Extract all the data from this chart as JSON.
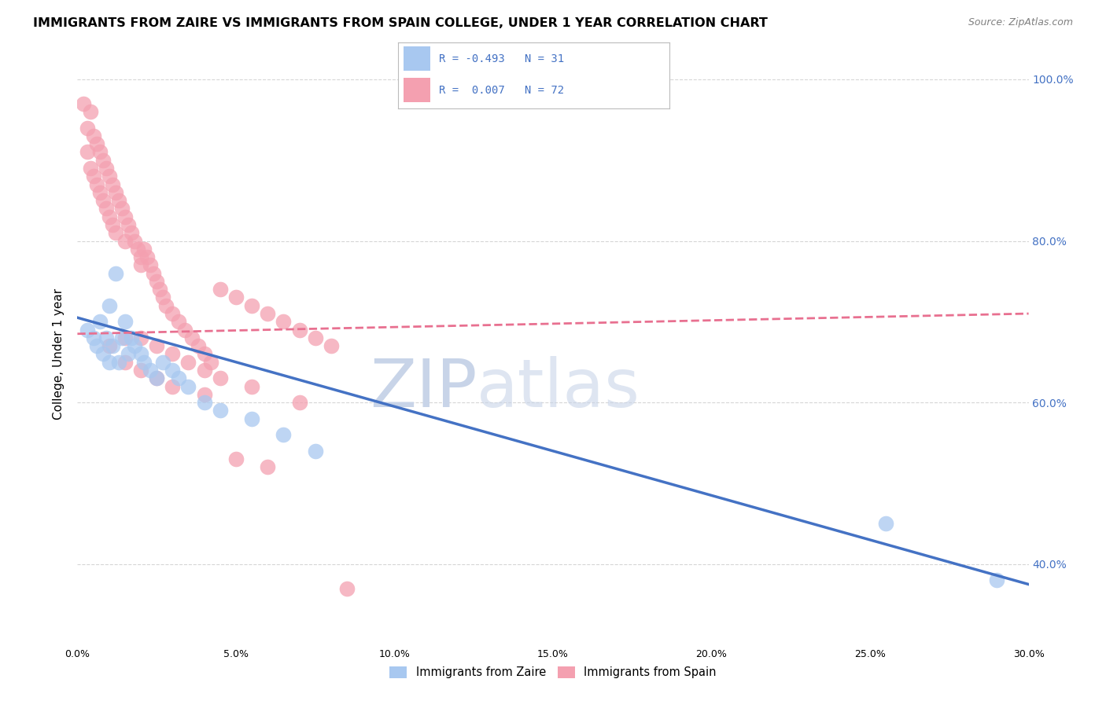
{
  "title": "IMMIGRANTS FROM ZAIRE VS IMMIGRANTS FROM SPAIN COLLEGE, UNDER 1 YEAR CORRELATION CHART",
  "source": "Source: ZipAtlas.com",
  "ylabel_label": "College, Under 1 year",
  "xmin": 0.0,
  "xmax": 30.0,
  "ymin": 30.0,
  "ymax": 102.0,
  "legend_blue_r": "R = -0.493",
  "legend_blue_n": "N = 31",
  "legend_pink_r": "R =  0.007",
  "legend_pink_n": "N = 72",
  "legend_label_blue": "Immigrants from Zaire",
  "legend_label_pink": "Immigrants from Spain",
  "blue_color": "#a8c8f0",
  "pink_color": "#f4a0b0",
  "blue_line_color": "#4472c4",
  "pink_line_color": "#e87090",
  "watermark_zip": "ZIP",
  "watermark_atlas": "atlas",
  "watermark_color": "#c8d4e8",
  "blue_scatter_x": [
    0.3,
    0.5,
    0.6,
    0.7,
    0.8,
    0.9,
    1.0,
    1.0,
    1.1,
    1.2,
    1.3,
    1.4,
    1.5,
    1.6,
    1.7,
    1.8,
    2.0,
    2.1,
    2.3,
    2.5,
    2.7,
    3.0,
    3.2,
    3.5,
    4.0,
    4.5,
    5.5,
    6.5,
    7.5,
    25.5,
    29.0
  ],
  "blue_scatter_y": [
    69,
    68,
    67,
    70,
    66,
    68,
    65,
    72,
    67,
    76,
    65,
    68,
    70,
    66,
    68,
    67,
    66,
    65,
    64,
    63,
    65,
    64,
    63,
    62,
    60,
    59,
    58,
    56,
    54,
    45,
    38
  ],
  "pink_scatter_x": [
    0.2,
    0.3,
    0.3,
    0.4,
    0.4,
    0.5,
    0.5,
    0.6,
    0.6,
    0.7,
    0.7,
    0.8,
    0.8,
    0.9,
    0.9,
    1.0,
    1.0,
    1.1,
    1.1,
    1.2,
    1.2,
    1.3,
    1.4,
    1.5,
    1.5,
    1.6,
    1.7,
    1.8,
    1.9,
    2.0,
    2.0,
    2.1,
    2.2,
    2.3,
    2.4,
    2.5,
    2.6,
    2.7,
    2.8,
    3.0,
    3.2,
    3.4,
    3.6,
    3.8,
    4.0,
    4.2,
    4.5,
    5.0,
    5.5,
    6.0,
    6.5,
    7.0,
    7.5,
    8.0,
    1.5,
    2.0,
    2.5,
    3.0,
    3.5,
    4.0,
    4.5,
    5.5,
    7.0,
    1.0,
    1.5,
    2.0,
    2.5,
    3.0,
    4.0,
    5.0,
    6.0,
    8.5
  ],
  "pink_scatter_y": [
    97,
    94,
    91,
    96,
    89,
    93,
    88,
    92,
    87,
    91,
    86,
    90,
    85,
    89,
    84,
    88,
    83,
    87,
    82,
    86,
    81,
    85,
    84,
    83,
    80,
    82,
    81,
    80,
    79,
    78,
    77,
    79,
    78,
    77,
    76,
    75,
    74,
    73,
    72,
    71,
    70,
    69,
    68,
    67,
    66,
    65,
    74,
    73,
    72,
    71,
    70,
    69,
    68,
    67,
    68,
    68,
    67,
    66,
    65,
    64,
    63,
    62,
    60,
    67,
    65,
    64,
    63,
    62,
    61,
    53,
    52,
    37
  ],
  "blue_line_x0": 0.0,
  "blue_line_y0": 70.5,
  "blue_line_x1": 30.0,
  "blue_line_y1": 37.5,
  "pink_line_x0": 0.0,
  "pink_line_y0": 68.5,
  "pink_line_x1": 30.0,
  "pink_line_y1": 71.0,
  "grid_color": "#cccccc",
  "background_color": "#ffffff",
  "plot_bg_color": "#ffffff",
  "yticks": [
    40,
    60,
    80,
    100
  ],
  "xticks": [
    0,
    5,
    10,
    15,
    20,
    25,
    30
  ]
}
